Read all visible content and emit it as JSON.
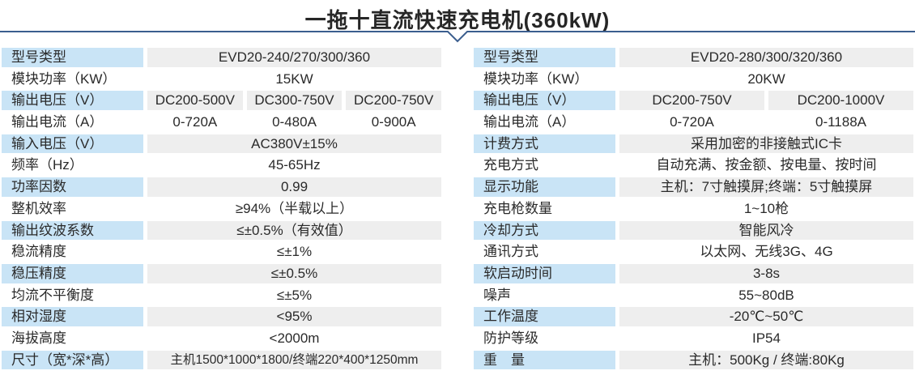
{
  "title": "一拖十直流快速充电机(360kW)",
  "colors": {
    "label_bg": "#c9e4f6",
    "value_bg": "#eeeeee",
    "divider": "#3b5e8e"
  },
  "tables": [
    {
      "name": "left-spec-table",
      "rows": [
        {
          "label": "型号类型",
          "values": [
            "EVD20-240/270/300/360"
          ]
        },
        {
          "label": "模块功率（KW）",
          "values": [
            "15KW"
          ]
        },
        {
          "label": "输出电压（V）",
          "values": [
            "DC200-500V",
            "DC300-750V",
            "DC200-750V"
          ]
        },
        {
          "label": "输出电流（A）",
          "values": [
            "0-720A",
            "0-480A",
            "0-900A"
          ]
        },
        {
          "label": "输入电压（V）",
          "values": [
            "AC380V±15%"
          ]
        },
        {
          "label": "频率（Hz）",
          "values": [
            "45-65Hz"
          ]
        },
        {
          "label": "功率因数",
          "values": [
            "0.99"
          ]
        },
        {
          "label": "整机效率",
          "values": [
            "≥94%（半载以上）"
          ]
        },
        {
          "label": "输出纹波系数",
          "values": [
            "≤±0.5%（有效值）"
          ]
        },
        {
          "label": "稳流精度",
          "values": [
            "≤±1%"
          ]
        },
        {
          "label": "稳压精度",
          "values": [
            "≤±0.5%"
          ]
        },
        {
          "label": "均流不平衡度",
          "values": [
            "≤±5%"
          ]
        },
        {
          "label": "相对湿度",
          "values": [
            "<95%"
          ]
        },
        {
          "label": "海拔高度",
          "values": [
            "<2000m"
          ]
        },
        {
          "label": "尺寸（宽*深*高）",
          "values": [
            "主机1500*1000*1800/终端220*400*1250mm"
          ]
        }
      ]
    },
    {
      "name": "right-spec-table",
      "rows": [
        {
          "label": "型号类型",
          "values": [
            "EVD20-280/300/320/360"
          ]
        },
        {
          "label": "模块功率（KW）",
          "values": [
            "20KW"
          ]
        },
        {
          "label": "输出电压（V）",
          "values": [
            "DC200-750V",
            "DC200-1000V"
          ]
        },
        {
          "label": "输出电流（A）",
          "values": [
            "0-720A",
            "0-1188A"
          ]
        },
        {
          "label": "计费方式",
          "values": [
            "采用加密的非接触式IC卡"
          ]
        },
        {
          "label": "充电方式",
          "values": [
            "自动充满、按金额、按电量、按时间"
          ]
        },
        {
          "label": "显示功能",
          "values": [
            "主机：7寸触摸屏;终端：5寸触摸屏"
          ]
        },
        {
          "label": "充电枪数量",
          "values": [
            "1~10枪"
          ]
        },
        {
          "label": "冷却方式",
          "values": [
            "智能风冷"
          ]
        },
        {
          "label": "通讯方式",
          "values": [
            "以太网、无线3G、4G"
          ]
        },
        {
          "label": "软启动时间",
          "values": [
            "3-8s"
          ]
        },
        {
          "label": "噪声",
          "values": [
            "55~80dB"
          ]
        },
        {
          "label": "工作温度",
          "values": [
            "-20℃~50℃"
          ]
        },
        {
          "label": "防护等级",
          "values": [
            "IP54"
          ]
        },
        {
          "label": "重　量",
          "values": [
            "主机：500Kg / 终端:80Kg"
          ]
        }
      ]
    }
  ]
}
